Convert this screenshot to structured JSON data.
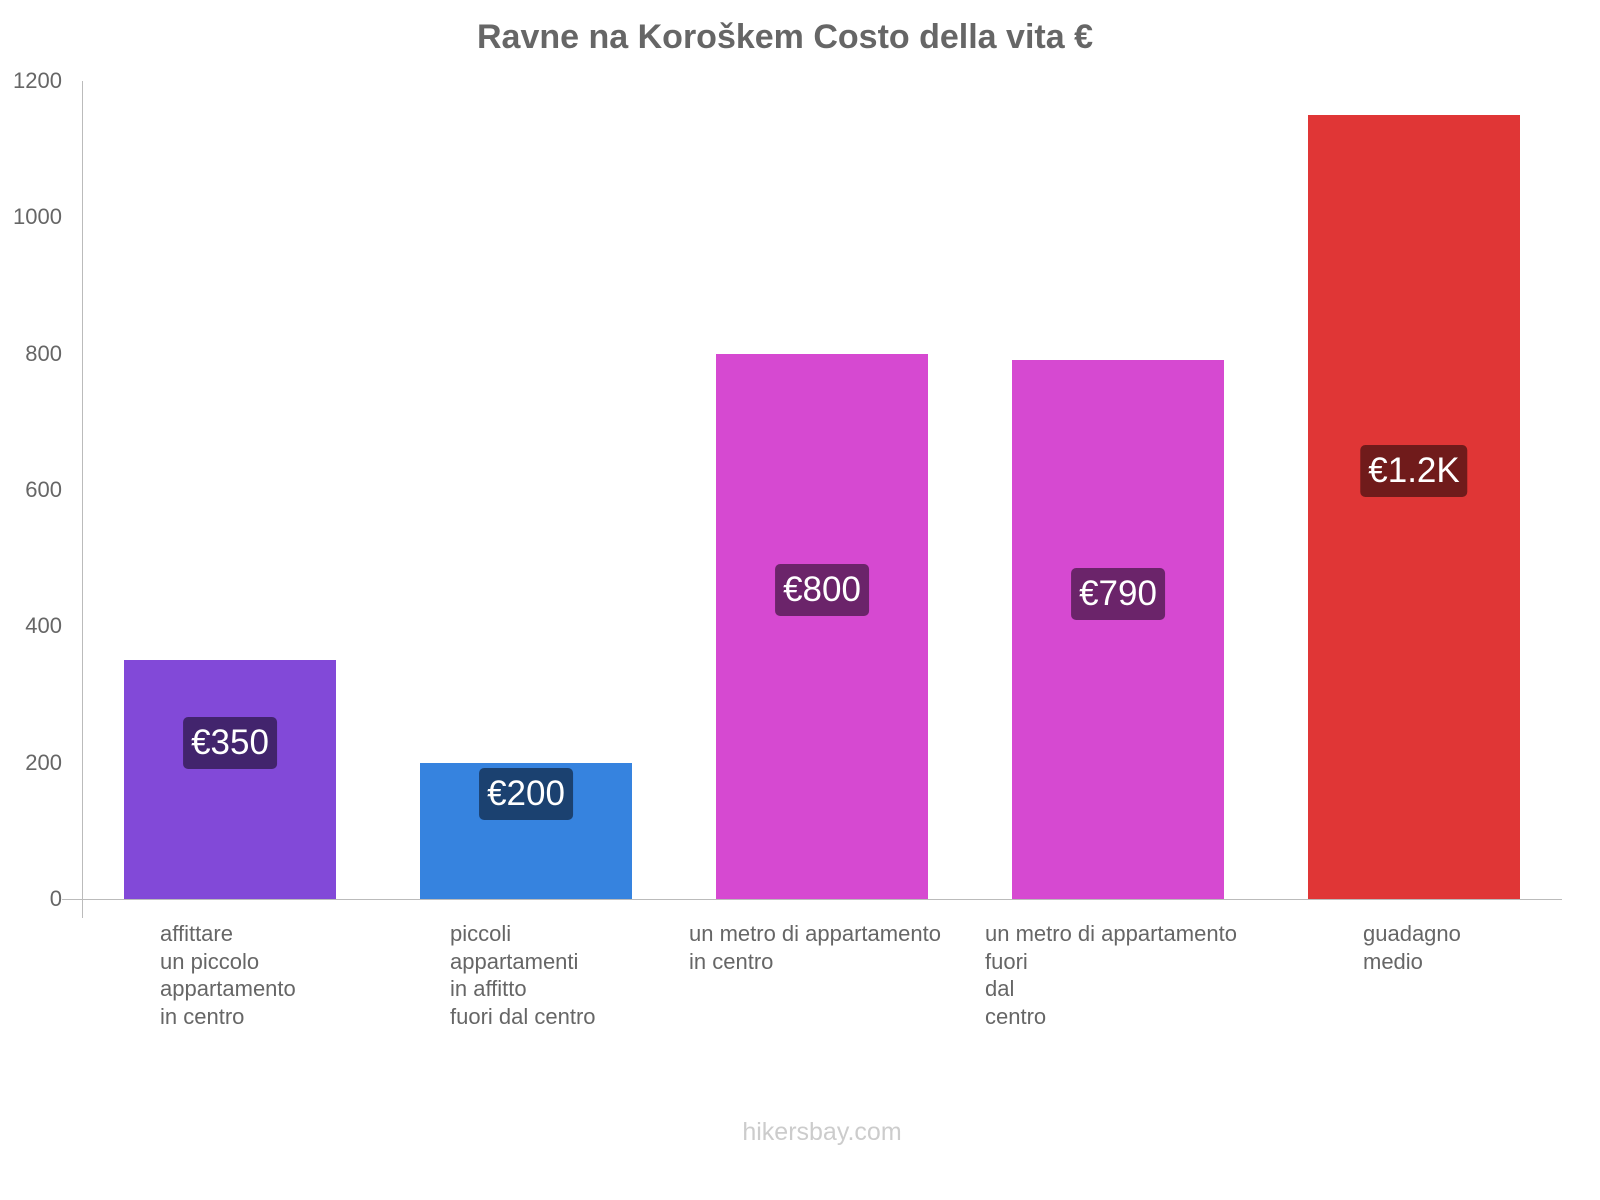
{
  "header": {
    "title": "Ravne na Koroškem Costo della vita €"
  },
  "footer": {
    "watermark": "hikersbay.com"
  },
  "yaxis": {
    "ticks": [
      "0",
      "200",
      "400",
      "600",
      "800",
      "1000",
      "1200"
    ]
  },
  "bars": [
    {
      "label": "affittare\nun piccolo\nappartamento\nin centro",
      "value_label": "€350",
      "value": 350,
      "color": "#8249d8",
      "badge_color": "#42246d"
    },
    {
      "label": "piccoli\nappartamenti\nin affitto\nfuori dal centro",
      "value_label": "€200",
      "value": 200,
      "color": "#3683df",
      "badge_color": "#1b4170"
    },
    {
      "label": "un metro di appartamento\nin centro",
      "value_label": "€800",
      "value": 800,
      "color": "#d649d1",
      "badge_color": "#6b246a"
    },
    {
      "label": "un metro di appartamento\nfuori\ndal\ncentro",
      "value_label": "€790",
      "value": 790,
      "color": "#d649d1",
      "badge_color": "#6b246a"
    },
    {
      "label": "guadagno\nmedio",
      "value_label": "€1.2K",
      "value": 1150,
      "color": "#e03636",
      "badge_color": "#701b1b"
    }
  ],
  "chart_data": {
    "type": "bar",
    "title": "Ravne na Koroškem Costo della vita €",
    "categories": [
      "affittare un piccolo appartamento in centro",
      "piccoli appartamenti in affitto fuori dal centro",
      "un metro di appartamento in centro",
      "un metro di appartamento fuori dal centro",
      "guadagno medio"
    ],
    "values": [
      350,
      200,
      800,
      790,
      1150
    ],
    "data_labels": [
      "€350",
      "€200",
      "€800",
      "€790",
      "€1.2K"
    ],
    "colors": [
      "#8249d8",
      "#3683df",
      "#d649d1",
      "#d649d1",
      "#e03636"
    ],
    "xlabel": "",
    "ylabel": "",
    "ylim": [
      0,
      1200
    ],
    "yticks": [
      0,
      200,
      400,
      600,
      800,
      1000,
      1200
    ],
    "grid": false,
    "legend": null
  }
}
